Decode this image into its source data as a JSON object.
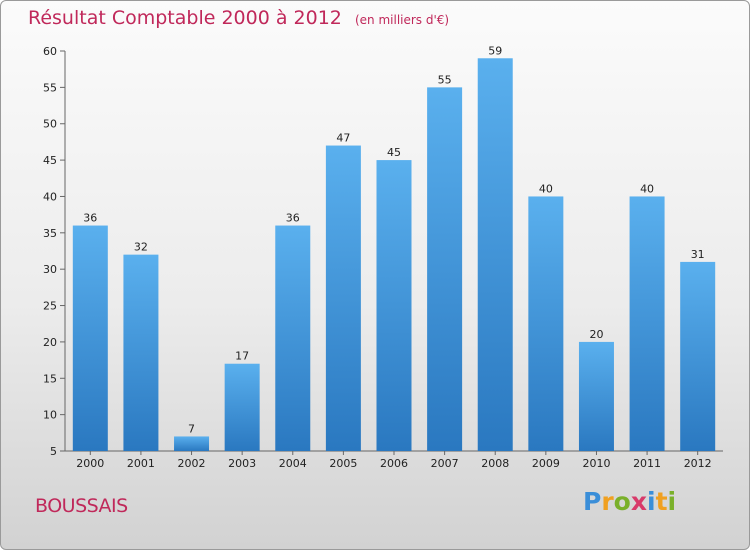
{
  "title": "Résultat Comptable 2000 à 2012",
  "subtitle": "(en milliers d'€)",
  "commune": "BOUSSAIS",
  "logo": {
    "letters": [
      "P",
      "r",
      "o",
      "x",
      "i",
      "t",
      "i"
    ],
    "colors": [
      "#3a8ed8",
      "#f0a020",
      "#7ab02a",
      "#d83a6a",
      "#3a8ed8",
      "#f0a020",
      "#7ab02a"
    ]
  },
  "colors": {
    "title": "#c0285a",
    "bar_top": "#5ab0ee",
    "bar_bottom": "#2a78c0"
  },
  "chart_data": {
    "type": "bar",
    "title": "Résultat Comptable 2000 à 2012",
    "subtitle": "(en milliers d'€)",
    "categories": [
      "2000",
      "2001",
      "2002",
      "2003",
      "2004",
      "2005",
      "2006",
      "2007",
      "2008",
      "2009",
      "2010",
      "2011",
      "2012"
    ],
    "values": [
      36,
      32,
      7,
      17,
      36,
      47,
      45,
      55,
      59,
      40,
      20,
      40,
      31
    ],
    "ylim": [
      5,
      60
    ],
    "yticks": [
      5,
      10,
      15,
      20,
      25,
      30,
      35,
      40,
      45,
      50,
      55,
      60
    ],
    "grid": false,
    "data_labels": true
  }
}
